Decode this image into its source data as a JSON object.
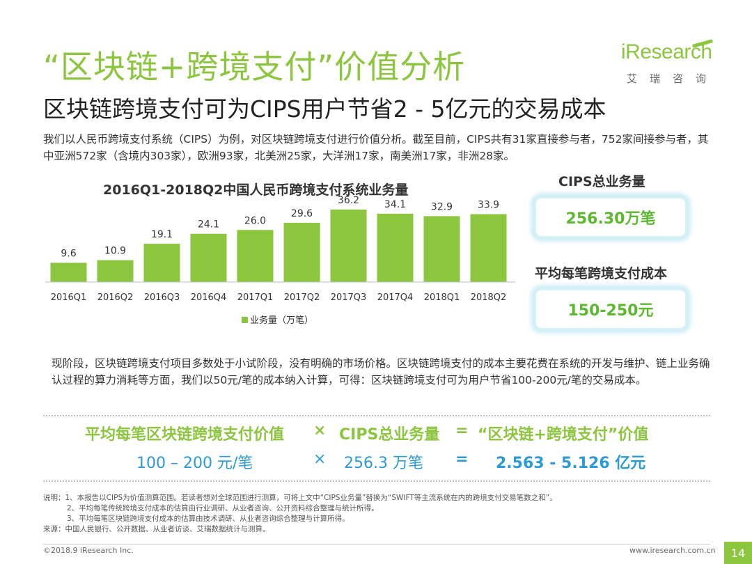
{
  "header": {
    "title": "“区块链+跨境支付”价值分析",
    "subtitle": "区块链跨境支付可为CIPS用户节省2 - 5亿元的交易成本"
  },
  "logo": {
    "brand": "iResearch",
    "brand_cn": "艾瑞咨询"
  },
  "intro": "我们以人民币跨境支付系统（CIPS）为例，对区块链跨境支付进行价值分析。截至目前，CIPS共有31家直接参与者，752家间接参与者，其中亚洲572家（含境内303家），欧洲93家，北美洲25家，大洋洲17家，南美洲17家，非洲28家。",
  "chart_data": {
    "type": "bar",
    "title": "2016Q1-2018Q2中国人民币跨境支付系统业务量",
    "categories": [
      "2016Q1",
      "2016Q2",
      "2016Q3",
      "2016Q4",
      "2017Q1",
      "2017Q2",
      "2017Q3",
      "2017Q4",
      "2018Q1",
      "2018Q2"
    ],
    "series": [
      {
        "name": "业务量（万笔）",
        "values": [
          9.6,
          10.9,
          19.1,
          24.1,
          26.0,
          29.6,
          36.2,
          34.1,
          32.9,
          33.9
        ]
      }
    ],
    "value_labels": [
      "9.6",
      "10.9",
      "19.1",
      "24.1",
      "26.0",
      "29.6",
      "36.2",
      "34.1",
      "32.9",
      "33.9"
    ],
    "ylim": [
      0,
      40
    ],
    "grid": false,
    "legend_position": "bottom",
    "colors": {
      "bar": "#8cc63f"
    }
  },
  "side": {
    "total_label": "CIPS总业务量",
    "total_value": "256.30万笔",
    "cost_label": "平均每笔跨境支付成本",
    "cost_value": "150-250元"
  },
  "description": "现阶段，区块链跨境支付项目多数处于小试阶段，没有明确的市场价格。区块链跨境支付的成本主要花费在系统的开发与维护、链上业务确认过程的算力消耗等方面，我们以50元/笔的成本纳入计算，可得：区块链跨境支付可为用户节省100-200元/笔的交易成本。",
  "formula": {
    "term1": "平均每笔区块链跨境支付价值",
    "times": "×",
    "term2": "CIPS总业务量",
    "equals": "=",
    "term3": "“区块链+跨境支付”价值",
    "value1": "100 – 200 元/笔",
    "value2": "256.3 万笔",
    "result": "2.563 - 5.126 亿元"
  },
  "notes": {
    "line1": "说明：1、本报告以CIPS为价值测算范围。若读者想对全球范围进行测算，可将上文中“CIPS业务量”替换为“SWIFT等主流系统在内的跨境支付交易笔数之和”。",
    "line2": "2、平均每笔传统跨境支付成本的估算由行业调研、从业者咨询、公开资料综合整理与统计所得。",
    "line3": "3、平均每笔区块链跨境支付成本的估算由技术调研、从业者咨询综合整理与计算所得。",
    "line4": "来源：中国人民银行、公开数据、从业者访谈、艾瑞数据统计与测算。"
  },
  "footer": {
    "copyright": "©2018.9 iResearch Inc.",
    "website": "www.iresearch.com.cn",
    "page": "14"
  },
  "colors": {
    "accent": "#8cc63f",
    "blue": "#2a9bd6",
    "result_green": "#5cb82e"
  }
}
